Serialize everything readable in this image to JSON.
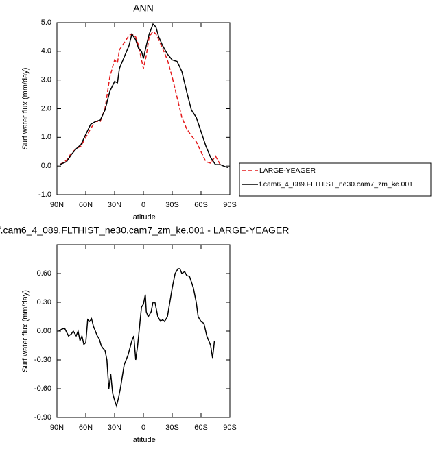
{
  "chart_data": [
    {
      "type": "line",
      "title": "ANN",
      "ylabel": "Surf water flux (mm/day)",
      "xlabel": "latitude",
      "xlim": [
        90,
        -90
      ],
      "xticks": [
        {
          "value": 90,
          "label": "90N"
        },
        {
          "value": 60,
          "label": "60N"
        },
        {
          "value": 30,
          "label": "30N"
        },
        0,
        {
          "value": -30,
          "label": "30S"
        },
        {
          "value": -60,
          "label": "60S"
        },
        {
          "value": -90,
          "label": "90S"
        }
      ],
      "ylim": [
        -1,
        5
      ],
      "yticks": [
        {
          "value": -1,
          "label": "-1.0"
        },
        {
          "value": 0,
          "label": "0.0"
        },
        {
          "value": 1,
          "label": "1.0"
        },
        {
          "value": 2,
          "label": "2.0"
        },
        {
          "value": 3,
          "label": "3.0"
        },
        {
          "value": 4,
          "label": "4.0"
        },
        {
          "value": 5,
          "label": "5.0"
        }
      ],
      "legend": "right",
      "x": [
        87,
        80,
        75,
        70,
        65,
        60,
        55,
        50,
        45,
        40,
        35,
        30,
        27,
        25,
        20,
        15,
        12,
        8,
        5,
        2,
        0,
        -3,
        -6,
        -10,
        -13,
        -16,
        -20,
        -25,
        -30,
        -35,
        -40,
        -45,
        -50,
        -55,
        -60,
        -65,
        -70,
        -75,
        -80,
        -85,
        -88
      ],
      "series": [
        {
          "name": "LARGE-YEAGER",
          "color": "#e41a1c",
          "dashed": true,
          "values": [
            0.05,
            0.2,
            0.45,
            0.6,
            0.7,
            1.0,
            1.3,
            1.55,
            1.55,
            2.0,
            3.1,
            3.7,
            3.6,
            4.05,
            4.3,
            4.55,
            4.6,
            4.5,
            4.2,
            3.7,
            3.4,
            3.85,
            4.5,
            4.7,
            4.6,
            4.4,
            4.1,
            3.7,
            3.1,
            2.4,
            1.7,
            1.3,
            1.05,
            0.85,
            0.5,
            0.15,
            0.1,
            0.35,
            0.05,
            null,
            null
          ]
        },
        {
          "name": "f.cam6_4_089.FLTHIST_ne30.cam7_zm_ke.001",
          "color": "#000000",
          "dashed": false,
          "values": [
            0.05,
            0.15,
            0.4,
            0.6,
            0.75,
            1.1,
            1.45,
            1.55,
            1.6,
            1.95,
            2.6,
            2.95,
            2.9,
            3.4,
            3.8,
            4.2,
            4.6,
            4.4,
            4.1,
            4.0,
            3.75,
            4.2,
            4.6,
            4.95,
            4.85,
            4.5,
            4.2,
            3.9,
            3.7,
            3.65,
            3.3,
            2.6,
            1.95,
            1.7,
            1.2,
            0.7,
            0.3,
            0.05,
            0.05,
            -0.02,
            -0.05
          ]
        }
      ]
    },
    {
      "type": "line",
      "title": "f.cam6_4_089.FLTHIST_ne30.cam7_zm_ke.001 - LARGE-YEAGER",
      "ylabel": "Surf water flux (mm/day)",
      "xlabel": "latitude",
      "xlim": [
        90,
        -90
      ],
      "xticks": [
        {
          "value": 90,
          "label": "90N"
        },
        {
          "value": 60,
          "label": "60N"
        },
        {
          "value": 30,
          "label": "30N"
        },
        0,
        {
          "value": -30,
          "label": "30S"
        },
        {
          "value": -60,
          "label": "60S"
        },
        {
          "value": -90,
          "label": "90S"
        }
      ],
      "ylim": [
        -0.9,
        0.9
      ],
      "yticks": [
        {
          "value": -0.9,
          "label": "-0.90"
        },
        {
          "value": -0.6,
          "label": "-0.60"
        },
        {
          "value": -0.3,
          "label": "-0.30"
        },
        {
          "value": 0,
          "label": "0.00"
        },
        {
          "value": 0.3,
          "label": "0.30"
        },
        {
          "value": 0.6,
          "label": "0.60"
        }
      ],
      "x": [
        88,
        85,
        82,
        78,
        75,
        73,
        70,
        68,
        66,
        64,
        62,
        60,
        58,
        56,
        54,
        52,
        50,
        48,
        46,
        44,
        42,
        40,
        38,
        36,
        34,
        32,
        30,
        28,
        26,
        24,
        20,
        16,
        12,
        10,
        8,
        6,
        4,
        2,
        0,
        -2,
        -3,
        -5,
        -8,
        -10,
        -12,
        -15,
        -18,
        -20,
        -22,
        -25,
        -30,
        -33,
        -36,
        -38,
        -40,
        -43,
        -45,
        -48,
        -52,
        -55,
        -57,
        -60,
        -63,
        -66,
        -70,
        -72,
        -74
      ],
      "series": [
        {
          "color": "#000000",
          "dashed": false,
          "values": [
            0.0,
            0.02,
            0.03,
            -0.05,
            -0.03,
            0.0,
            -0.05,
            0.0,
            -0.1,
            -0.05,
            -0.14,
            -0.12,
            0.12,
            0.1,
            0.13,
            0.05,
            0.0,
            -0.05,
            -0.08,
            -0.15,
            -0.18,
            -0.2,
            -0.3,
            -0.6,
            -0.45,
            -0.65,
            -0.72,
            -0.78,
            -0.7,
            -0.6,
            -0.35,
            -0.25,
            -0.1,
            -0.05,
            -0.3,
            -0.15,
            0.05,
            0.25,
            0.28,
            0.38,
            0.2,
            0.15,
            0.2,
            0.3,
            0.3,
            0.15,
            0.1,
            0.12,
            0.1,
            0.15,
            0.45,
            0.6,
            0.65,
            0.65,
            0.6,
            0.62,
            0.58,
            0.57,
            0.45,
            0.3,
            0.15,
            0.1,
            0.08,
            -0.05,
            -0.15,
            -0.28,
            -0.1
          ]
        }
      ]
    }
  ]
}
